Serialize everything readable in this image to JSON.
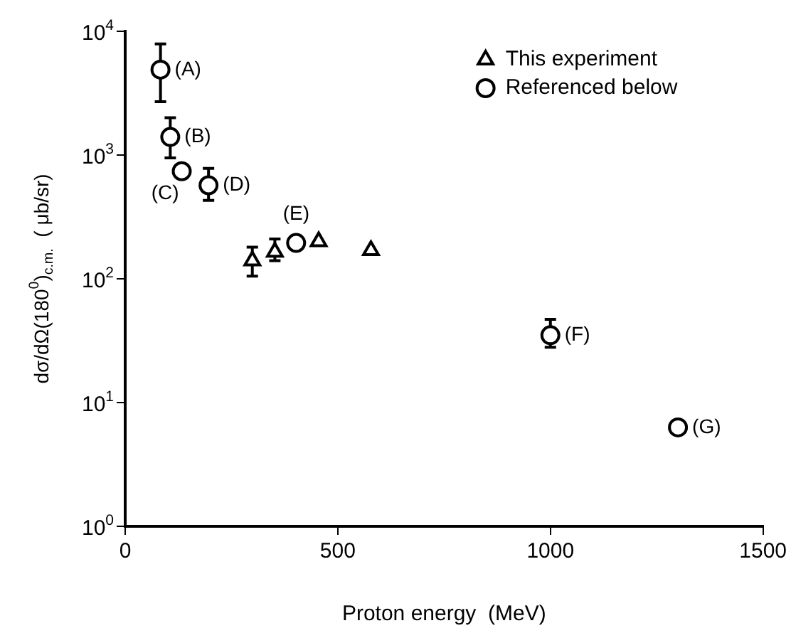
{
  "chart_data": {
    "type": "scatter",
    "xlabel": "Proton energy  (MeV)",
    "ylabel": "dσ/dΩ(180$^{0}$)$_{c.m.}$  ( μb/sr)",
    "log": "y",
    "xlim": [
      0,
      1500
    ],
    "xticks": [
      0,
      500,
      1000,
      1500
    ],
    "ylim": [
      1,
      10000
    ],
    "yticks": [
      {
        "value": 1,
        "label": "10$^{0}$"
      },
      {
        "value": 10,
        "label": "10$^{1}$"
      },
      {
        "value": 100,
        "label": "10$^{2}$"
      },
      {
        "value": 1000,
        "label": "10$^{3}$"
      },
      {
        "value": 10000,
        "label": "10$^{4}$"
      }
    ],
    "grid": false,
    "legend": "top right",
    "series": [
      {
        "name": "This experiment",
        "color": "#000000",
        "marker": "triangle",
        "x": [
          299,
          352,
          455,
          578
        ],
        "values": [
          140,
          165,
          200,
          170
        ],
        "errors": [
          [
            105,
            180
          ],
          [
            140,
            210
          ],
          null,
          null
        ]
      },
      {
        "name": "Referenced below",
        "color": "#000000",
        "marker": "circle",
        "x": [
          83,
          106,
          133,
          196,
          402,
          1000,
          1300
        ],
        "values": [
          4900,
          1400,
          740,
          570,
          195,
          35,
          6.3
        ],
        "errors": [
          [
            2700,
            7900
          ],
          [
            950,
            2000
          ],
          null,
          [
            430,
            780
          ],
          null,
          [
            28,
            47
          ],
          null
        ]
      }
    ],
    "annotations": [
      {
        "text": "(A)",
        "x": 83,
        "y": 4900
      },
      {
        "text": "(B)",
        "x": 106,
        "y": 1400
      },
      {
        "text": "(C)",
        "x": 133,
        "y": 740
      },
      {
        "text": "(D)",
        "x": 196,
        "y": 570
      },
      {
        "text": "(E)",
        "x": 402,
        "y": 195
      },
      {
        "text": "(F)",
        "x": 1000,
        "y": 35
      },
      {
        "text": "(G)",
        "x": 1300,
        "y": 6.3
      }
    ]
  }
}
